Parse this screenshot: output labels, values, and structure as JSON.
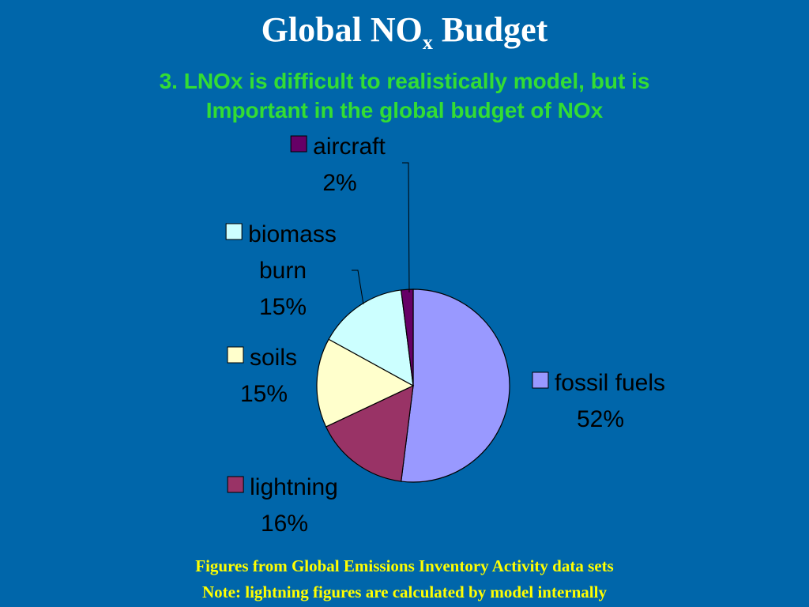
{
  "slide": {
    "title_main": "Global NO",
    "title_sub": "x",
    "title_end": " Budget",
    "subtitle_line1": "3. LNOx is difficult to realistically model, but is",
    "subtitle_line2": "Important in the global budget of NOx",
    "footnote_line1": "Figures from Global Emissions Inventory Activity data sets",
    "footnote_line2": "Note: lightning figures are calculated by model internally"
  },
  "chart_data": {
    "type": "pie",
    "title": "",
    "slices": [
      {
        "name": "fossil fuels",
        "label_lines": [
          "fossil fuels"
        ],
        "value": 52,
        "value_label": "52%",
        "color": "#9999ff"
      },
      {
        "name": "lightning",
        "label_lines": [
          "lightning"
        ],
        "value": 16,
        "value_label": "16%",
        "color": "#993366"
      },
      {
        "name": "soils",
        "label_lines": [
          "soils"
        ],
        "value": 15,
        "value_label": "15%",
        "color": "#ffffcc"
      },
      {
        "name": "biomass burn",
        "label_lines": [
          "biomass",
          "burn"
        ],
        "value": 15,
        "value_label": "15%",
        "color": "#ccffff"
      },
      {
        "name": "aircraft",
        "label_lines": [
          "aircraft"
        ],
        "value": 2,
        "value_label": "2%",
        "color": "#660066"
      }
    ],
    "legend": "none",
    "data_labels": "category name and percentage beside each slice"
  }
}
